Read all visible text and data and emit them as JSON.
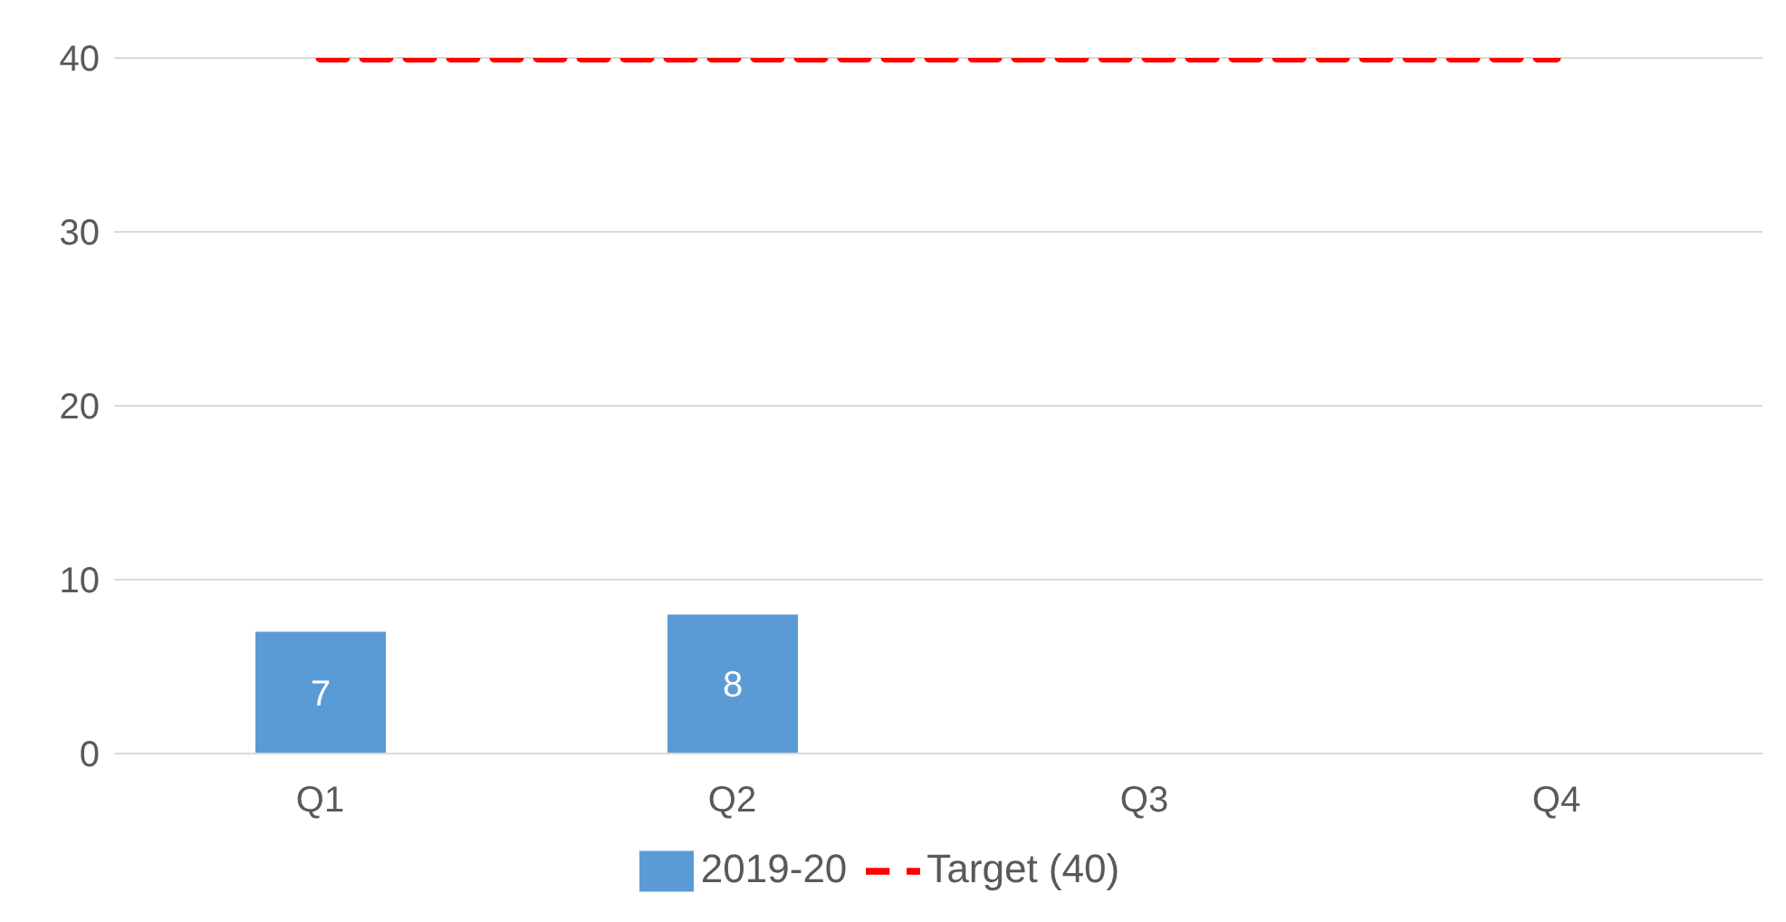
{
  "chart_data": {
    "type": "bar",
    "categories": [
      "Q1",
      "Q2",
      "Q3",
      "Q4"
    ],
    "series": [
      {
        "name": "2019-20",
        "color": "#5b9bd5",
        "values": [
          7,
          8,
          null,
          null
        ],
        "value_labels": [
          "7",
          "8",
          null,
          null
        ]
      },
      {
        "name": "Target (40)",
        "type": "line",
        "color": "#ff0000",
        "values": [
          40,
          40,
          40,
          40
        ],
        "line_style": "dashed"
      }
    ],
    "ylim": [
      0,
      40
    ],
    "yticks": [
      0,
      10,
      20,
      30,
      40
    ],
    "grid": "y",
    "legend": "bottom",
    "marker": "none"
  }
}
